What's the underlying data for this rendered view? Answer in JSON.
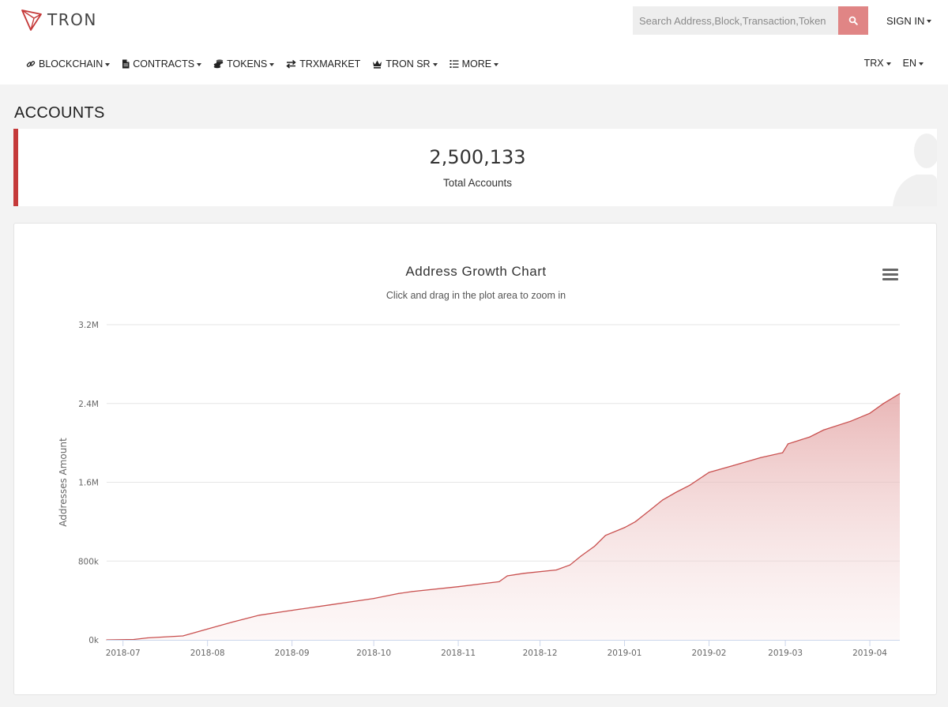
{
  "header": {
    "logo_text": "TRON",
    "search_placeholder": "Search Address,Block,Transaction,Token",
    "signin_label": "SIGN IN"
  },
  "nav": {
    "blockchain": "BLOCKCHAIN",
    "contracts": "CONTRACTS",
    "tokens": "TOKENS",
    "trxmarket": "TRXMARKET",
    "tronsr": "TRON SR",
    "more": "MORE",
    "currency": "TRX",
    "language": "EN"
  },
  "page": {
    "title": "ACCOUNTS"
  },
  "stats": {
    "total_value": "2,500,133",
    "total_label": "Total Accounts"
  },
  "colors": {
    "accent": "#c53a3a",
    "line": "#c9504f",
    "search_button": "#e08585"
  },
  "chart_data": {
    "type": "area",
    "title": "Address Growth Chart",
    "subtitle": "Click and drag in the plot area to zoom in",
    "ylabel": "Addresses Amount",
    "ylim": [
      0,
      3200000
    ],
    "yticks": [
      0,
      800000,
      1600000,
      2400000,
      3200000
    ],
    "ytick_labels": [
      "0k",
      "800k",
      "1.6M",
      "2.4M",
      "3.2M"
    ],
    "xlim": [
      "2018-06-25",
      "2019-04-12"
    ],
    "xtick_labels": [
      "2018-07",
      "2018-08",
      "2018-09",
      "2018-10",
      "2018-11",
      "2018-12",
      "2019-01",
      "2019-02",
      "2019-03",
      "2019-04"
    ],
    "xtick_dates": [
      "2018-07-01",
      "2018-08-01",
      "2018-09-01",
      "2018-10-01",
      "2018-11-01",
      "2018-12-01",
      "2019-01-01",
      "2019-02-01",
      "2019-03-01",
      "2019-04-01"
    ],
    "grid": true,
    "series": [
      {
        "points": [
          [
            "2018-06-25",
            0
          ],
          [
            "2018-07-05",
            4000
          ],
          [
            "2018-07-10",
            20000
          ],
          [
            "2018-07-23",
            40000
          ],
          [
            "2018-08-01",
            110000
          ],
          [
            "2018-08-10",
            180000
          ],
          [
            "2018-08-20",
            250000
          ],
          [
            "2018-09-01",
            300000
          ],
          [
            "2018-09-15",
            355000
          ],
          [
            "2018-10-01",
            420000
          ],
          [
            "2018-10-10",
            470000
          ],
          [
            "2018-10-15",
            490000
          ],
          [
            "2018-11-01",
            540000
          ],
          [
            "2018-11-10",
            570000
          ],
          [
            "2018-11-16",
            590000
          ],
          [
            "2018-11-19",
            650000
          ],
          [
            "2018-11-25",
            675000
          ],
          [
            "2018-12-07",
            710000
          ],
          [
            "2018-12-12",
            760000
          ],
          [
            "2018-12-16",
            850000
          ],
          [
            "2018-12-21",
            950000
          ],
          [
            "2018-12-25",
            1060000
          ],
          [
            "2019-01-01",
            1140000
          ],
          [
            "2019-01-05",
            1200000
          ],
          [
            "2019-01-10",
            1310000
          ],
          [
            "2019-01-15",
            1420000
          ],
          [
            "2019-01-20",
            1500000
          ],
          [
            "2019-01-25",
            1570000
          ],
          [
            "2019-02-01",
            1700000
          ],
          [
            "2019-02-10",
            1770000
          ],
          [
            "2019-02-20",
            1850000
          ],
          [
            "2019-02-28",
            1900000
          ],
          [
            "2019-03-02",
            1990000
          ],
          [
            "2019-03-10",
            2060000
          ],
          [
            "2019-03-15",
            2130000
          ],
          [
            "2019-03-25",
            2220000
          ],
          [
            "2019-04-01",
            2300000
          ],
          [
            "2019-04-06",
            2400000
          ],
          [
            "2019-04-12",
            2500000
          ]
        ]
      }
    ]
  }
}
